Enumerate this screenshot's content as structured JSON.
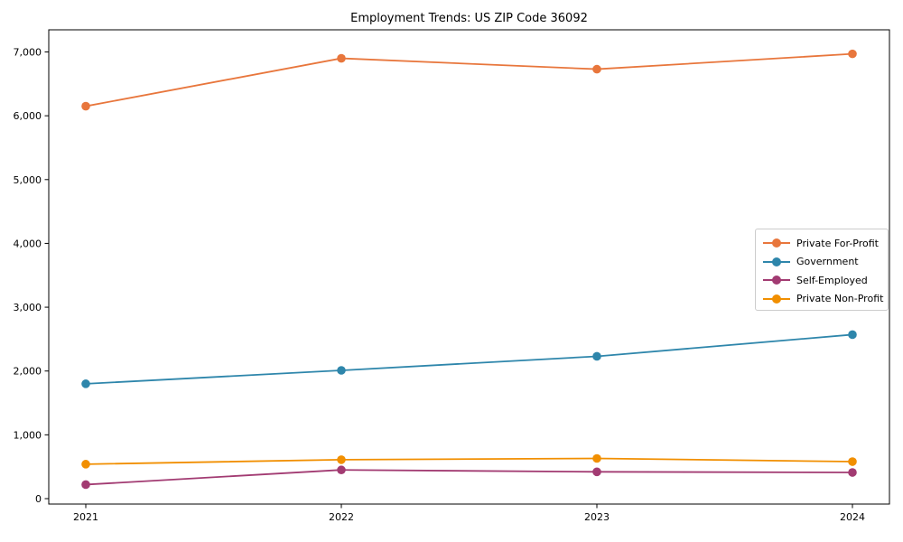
{
  "chart_data": {
    "type": "line",
    "title": "Employment Trends: US ZIP Code 36092",
    "categories": [
      "2021",
      "2022",
      "2023",
      "2024"
    ],
    "series": [
      {
        "name": "Private For-Profit",
        "color": "#E8763C",
        "values": [
          6150,
          6900,
          6730,
          6970
        ]
      },
      {
        "name": "Government",
        "color": "#2E86AB",
        "values": [
          1800,
          2010,
          2230,
          2570
        ]
      },
      {
        "name": "Self-Employed",
        "color": "#A23B72",
        "values": [
          220,
          450,
          420,
          410
        ]
      },
      {
        "name": "Private Non-Profit",
        "color": "#F18F01",
        "values": [
          540,
          610,
          630,
          580
        ]
      }
    ],
    "xlabel": "",
    "ylabel": "",
    "ylim": [
      -85,
      7347
    ],
    "yticks": [
      0,
      1000,
      2000,
      3000,
      4000,
      5000,
      6000,
      7000
    ],
    "ytick_labels": [
      "0",
      "1,000",
      "2,000",
      "3,000",
      "4,000",
      "5,000",
      "6,000",
      "7,000"
    ],
    "grid": "off",
    "legend_position": "center-right",
    "marker": "circle",
    "axis_color": "#000000"
  }
}
